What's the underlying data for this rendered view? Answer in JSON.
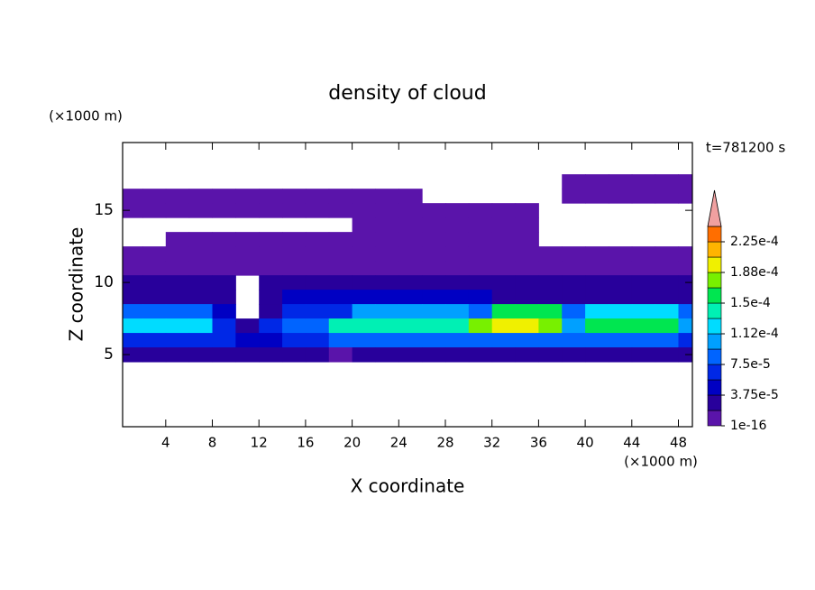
{
  "chart_data": {
    "type": "contour",
    "title": "density of cloud",
    "x_label": "X coordinate",
    "y_label": "Z coordinate",
    "x_unit": "(×1000 m)",
    "y_unit": "(×1000 m)",
    "time_label": "t=781200 s",
    "xlim": [
      0.3,
      49.2
    ],
    "ylim": [
      0,
      19.7
    ],
    "xticks": [
      4,
      8,
      12,
      16,
      20,
      24,
      28,
      32,
      36,
      40,
      44,
      48
    ],
    "yticks": [
      5,
      10,
      15
    ],
    "x": [
      1,
      3,
      5,
      7,
      9,
      11,
      13,
      15,
      17,
      19,
      21,
      23,
      25,
      27,
      29,
      31,
      33,
      35,
      37,
      39,
      41,
      43,
      45,
      47,
      49
    ],
    "z": [
      17,
      16,
      15,
      14,
      13,
      12,
      11,
      10,
      9,
      8,
      7,
      6,
      5
    ],
    "field": [
      [
        null,
        null,
        null,
        null,
        null,
        null,
        null,
        null,
        null,
        null,
        null,
        null,
        null,
        null,
        null,
        null,
        null,
        null,
        null,
        5e-06,
        5e-06,
        5e-06,
        5e-06,
        5e-06,
        5e-06
      ],
      [
        5e-06,
        5e-06,
        5e-06,
        5e-06,
        5e-06,
        5e-06,
        5e-06,
        5e-06,
        5e-06,
        5e-06,
        5e-06,
        5e-06,
        5e-06,
        null,
        null,
        null,
        null,
        null,
        null,
        5e-06,
        5e-06,
        5e-06,
        5e-06,
        5e-06,
        5e-06
      ],
      [
        5e-06,
        5e-06,
        5e-06,
        5e-06,
        5e-06,
        5e-06,
        5e-06,
        5e-06,
        5e-06,
        5e-06,
        5e-06,
        5e-06,
        5e-06,
        5e-06,
        5e-06,
        5e-06,
        5e-06,
        5e-06,
        null,
        null,
        null,
        null,
        null,
        null,
        null
      ],
      [
        null,
        null,
        null,
        null,
        null,
        null,
        null,
        null,
        null,
        null,
        5e-06,
        5e-06,
        5e-06,
        5e-06,
        5e-06,
        5e-06,
        5e-06,
        5e-06,
        null,
        null,
        null,
        null,
        null,
        null,
        null
      ],
      [
        null,
        null,
        5e-06,
        5e-06,
        5e-06,
        5e-06,
        5e-06,
        5e-06,
        5e-06,
        5e-06,
        5e-06,
        5e-06,
        5e-06,
        5e-06,
        5e-06,
        5e-06,
        5e-06,
        5e-06,
        null,
        null,
        null,
        null,
        null,
        null,
        null
      ],
      [
        5e-06,
        5e-06,
        5e-06,
        5e-06,
        5e-06,
        5e-06,
        5e-06,
        5e-06,
        5e-06,
        5e-06,
        1e-05,
        1e-05,
        1e-05,
        1e-05,
        1e-05,
        1e-05,
        1e-05,
        1e-05,
        5e-06,
        5e-06,
        5e-06,
        5e-06,
        5e-06,
        5e-06,
        5e-06
      ],
      [
        1e-05,
        1e-05,
        1e-05,
        1e-05,
        1e-05,
        1e-05,
        1e-05,
        1e-05,
        1e-05,
        1e-05,
        1.5e-05,
        1.5e-05,
        1.5e-05,
        1.5e-05,
        1.5e-05,
        1.5e-05,
        1.5e-05,
        1e-05,
        1e-05,
        1e-05,
        1e-05,
        1e-05,
        1e-05,
        1e-05,
        1e-05
      ],
      [
        2e-05,
        2e-05,
        2e-05,
        2e-05,
        2e-05,
        null,
        2e-05,
        2e-05,
        2e-05,
        2e-05,
        2e-05,
        2e-05,
        2e-05,
        2e-05,
        2e-05,
        2e-05,
        2e-05,
        2e-05,
        2e-05,
        2e-05,
        2e-05,
        2e-05,
        2e-05,
        2e-05,
        2e-05
      ],
      [
        3e-05,
        3e-05,
        3e-05,
        3e-05,
        2e-05,
        null,
        2e-05,
        4e-05,
        4e-05,
        4e-05,
        4e-05,
        4e-05,
        4e-05,
        5e-05,
        5e-05,
        5e-05,
        3e-05,
        3e-05,
        3e-05,
        3e-05,
        3e-05,
        3e-05,
        3e-05,
        3e-05,
        3e-05
      ],
      [
        8e-05,
        8e-05,
        8e-05,
        8e-05,
        4e-05,
        null,
        3e-05,
        6e-05,
        6e-05,
        6e-05,
        0.00011,
        0.00011,
        0.00011,
        0.00011,
        0.00011,
        8e-05,
        0.00015,
        0.00015,
        0.00015,
        8e-05,
        0.00012,
        0.00012,
        0.00012,
        0.00012,
        8e-05
      ],
      [
        0.00013,
        0.00013,
        0.00013,
        0.00013,
        7e-05,
        3e-05,
        6e-05,
        9e-05,
        9e-05,
        0.00014,
        0.00014,
        0.00014,
        0.00014,
        0.00014,
        0.00014,
        0.00017,
        0.0002,
        0.00019,
        0.00017,
        0.00011,
        0.00015,
        0.00015,
        0.00015,
        0.00015,
        0.0001
      ],
      [
        7e-05,
        7e-05,
        7e-05,
        7e-05,
        6e-05,
        4e-05,
        5e-05,
        6e-05,
        6e-05,
        8e-05,
        8e-05,
        8e-05,
        8e-05,
        8e-05,
        8e-05,
        9e-05,
        9e-05,
        9e-05,
        9e-05,
        9e-05,
        9e-05,
        9e-05,
        9e-05,
        9e-05,
        7e-05
      ],
      [
        3e-05,
        3e-05,
        3e-05,
        3e-05,
        3e-05,
        3e-05,
        3e-05,
        3e-05,
        3e-05,
        1e-05,
        3e-05,
        3e-05,
        3e-05,
        3e-05,
        3e-05,
        3e-05,
        3e-05,
        3e-05,
        3e-05,
        3e-05,
        3e-05,
        3e-05,
        3e-05,
        3e-05,
        3e-05
      ]
    ],
    "colorbar": {
      "levels": [
        1e-16,
        1.875e-05,
        3.75e-05,
        5.625e-05,
        7.5e-05,
        9.375e-05,
        0.0001125,
        0.00013125,
        0.00015,
        0.00016875,
        0.0001875,
        0.00020625,
        0.000225,
        0.00024375
      ],
      "colors": [
        "#5a14aa",
        "#28009b",
        "#0000c3",
        "#0028e6",
        "#0064ff",
        "#00a0ff",
        "#00dcff",
        "#00f0b4",
        "#00e650",
        "#78f000",
        "#f0f000",
        "#ffb400",
        "#ff6e00"
      ],
      "extend_color": "#f0a0a0",
      "ticks": [
        1e-16,
        {
          "value": 3.75e-05,
          "label": "3.75e-5"
        },
        {
          "value": 7.5e-05,
          "label": "7.5e-5"
        },
        {
          "value": 0.0001125,
          "label": "1.12e-4"
        },
        {
          "value": 0.00015,
          "label": "1.5e-4"
        },
        {
          "value": 0.0001875,
          "label": "1.88e-4"
        },
        {
          "value": 0.000225,
          "label": "2.25e-4"
        }
      ]
    }
  }
}
